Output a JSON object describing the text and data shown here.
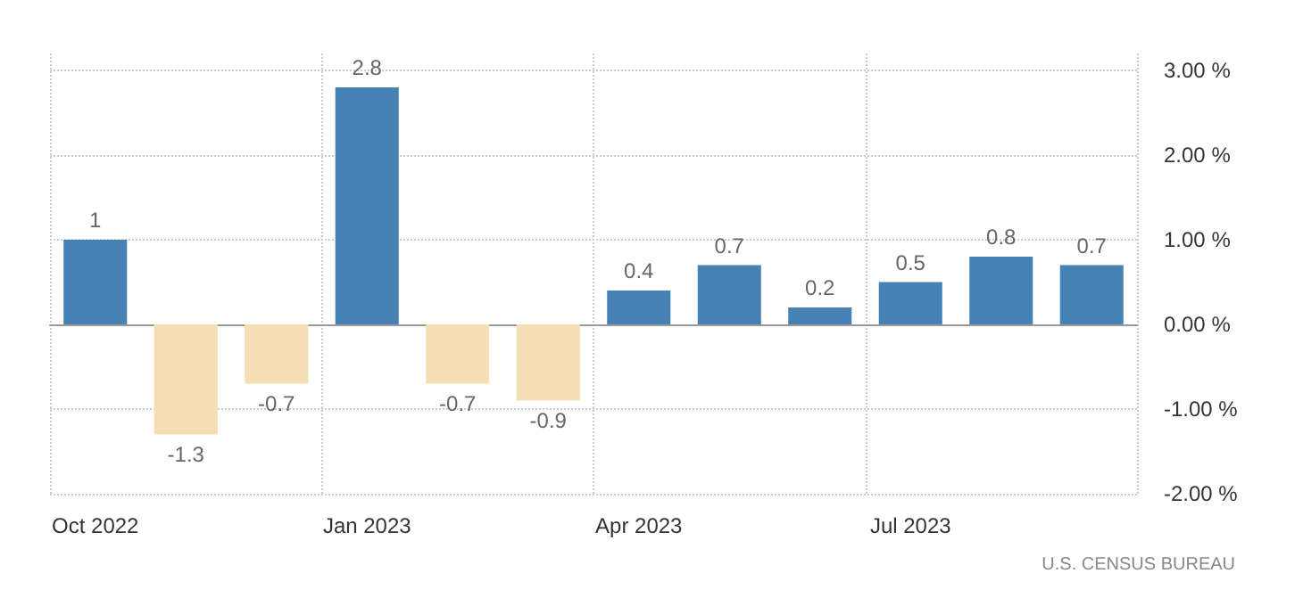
{
  "chart_data": {
    "type": "bar",
    "categories": [
      "Oct 2022",
      null,
      null,
      "Jan 2023",
      null,
      null,
      "Apr 2023",
      null,
      null,
      "Jul 2023",
      null,
      null
    ],
    "values": [
      1,
      -1.3,
      -0.7,
      2.8,
      -0.7,
      -0.9,
      0.4,
      0.7,
      0.2,
      0.5,
      0.8,
      0.7
    ],
    "colors": [
      "#4682b4",
      "#f5deb3",
      "#f5deb3",
      "#4682b4",
      "#f5deb3",
      "#f5deb3",
      "#4682b4",
      "#4682b4",
      "#4682b4",
      "#4682b4",
      "#4682b4",
      "#4682b4"
    ],
    "ylim": [
      -2,
      3.2
    ],
    "yticks": [
      {
        "value": -2,
        "label": "-2.00 %"
      },
      {
        "value": -1,
        "label": "-1.00 %"
      },
      {
        "value": 0,
        "label": "0.00 %"
      },
      {
        "value": 1,
        "label": "1.00 %"
      },
      {
        "value": 2,
        "label": "2.00 %"
      },
      {
        "value": 3,
        "label": "3.00 %"
      }
    ],
    "grid": true,
    "data_labels": true,
    "annotations": [
      "U.S. CENSUS BUREAU"
    ]
  }
}
